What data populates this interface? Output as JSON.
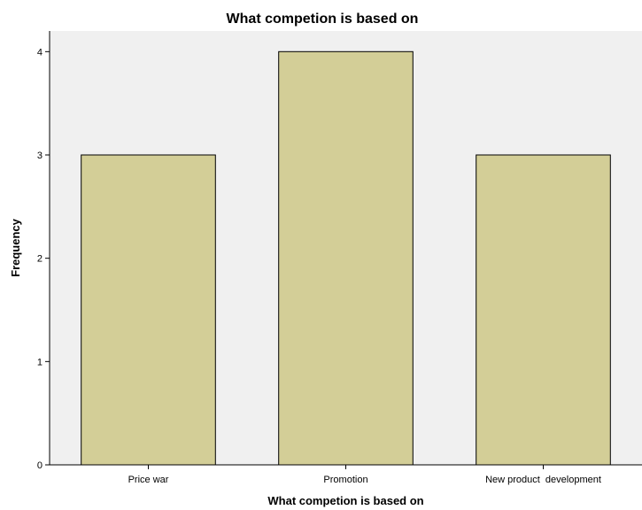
{
  "colors": {
    "background": "#ffffff",
    "plot_background": "#f0f0f0",
    "bar_fill": "#d3ce97",
    "bar_stroke": "#000000",
    "axis": "#000000"
  },
  "chart_data": {
    "type": "bar",
    "title": "What competion is based on",
    "xlabel": "What competion is based on",
    "ylabel": "Frequency",
    "categories": [
      "Price war",
      "Promotion",
      "New product  development"
    ],
    "values": [
      3,
      4,
      3
    ],
    "ylim": [
      0,
      4.2
    ],
    "yticks": [
      0,
      1,
      2,
      3,
      4
    ],
    "grid": false,
    "legend": "none"
  }
}
